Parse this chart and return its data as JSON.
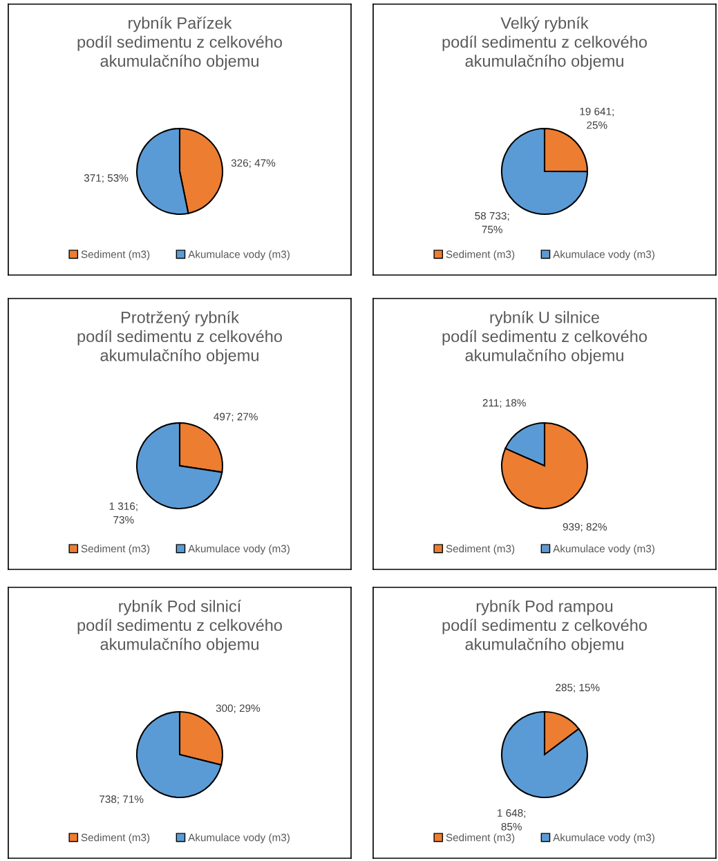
{
  "chart_data": [
    {
      "type": "pie",
      "title": "rybník Pařízek\npodíl sedimentu z celkového\nakumulačního objemu",
      "categories": [
        "Sediment (m3)",
        "Akumulace vody (m3)"
      ],
      "values": [
        326,
        371
      ],
      "colors": [
        "#ed7d31",
        "#5b9bd5"
      ],
      "value_labels": [
        "326; 47%",
        "371; 53%"
      ],
      "legend": "bottom"
    },
    {
      "type": "pie",
      "title": "Velký rybník\npodíl sedimentu z celkového\nakumulačního objemu",
      "categories": [
        "Sediment (m3)",
        "Akumulace vody (m3)"
      ],
      "values": [
        19641,
        58733
      ],
      "colors": [
        "#ed7d31",
        "#5b9bd5"
      ],
      "value_labels": [
        "19 641;\n25%",
        "58 733;\n75%"
      ],
      "legend": "bottom"
    },
    {
      "type": "pie",
      "title": "Protržený rybník\npodíl sedimentu z celkového\nakumulačního objemu",
      "categories": [
        "Sediment (m3)",
        "Akumulace vody (m3)"
      ],
      "values": [
        497,
        1316
      ],
      "colors": [
        "#ed7d31",
        "#5b9bd5"
      ],
      "value_labels": [
        "497; 27%",
        "1 316;\n73%"
      ],
      "legend": "bottom"
    },
    {
      "type": "pie",
      "title": "rybník U silnice\npodíl sedimentu z celkového\nakumulačního objemu",
      "categories": [
        "Sediment (m3)",
        "Akumulace vody (m3)"
      ],
      "values": [
        939,
        211
      ],
      "colors": [
        "#ed7d31",
        "#5b9bd5"
      ],
      "value_labels": [
        "939; 82%",
        "211; 18%"
      ],
      "legend": "bottom"
    },
    {
      "type": "pie",
      "title": "rybník Pod silnicí\npodíl sedimentu z celkového\nakumulačního objemu",
      "categories": [
        "Sediment (m3)",
        "Akumulace vody (m3)"
      ],
      "values": [
        300,
        738
      ],
      "colors": [
        "#ed7d31",
        "#5b9bd5"
      ],
      "value_labels": [
        "300; 29%",
        "738; 71%"
      ],
      "legend": "bottom"
    },
    {
      "type": "pie",
      "title": "rybník Pod rampou\npodíl sedimentu z celkového\nakumulačního objemu",
      "categories": [
        "Sediment (m3)",
        "Akumulace vody (m3)"
      ],
      "values": [
        285,
        1648
      ],
      "colors": [
        "#ed7d31",
        "#5b9bd5"
      ],
      "value_labels": [
        "285; 15%",
        "1 648;\n85%"
      ],
      "legend": "bottom"
    }
  ]
}
